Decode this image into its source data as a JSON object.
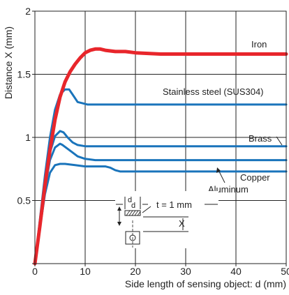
{
  "chart_data": {
    "type": "line",
    "title": "",
    "xlabel": "Side length of sensing object: d (mm)",
    "ylabel": "Distance X (mm)",
    "xlim": [
      0,
      50
    ],
    "ylim": [
      0,
      2
    ],
    "x_ticks": [
      0,
      10,
      20,
      30,
      40,
      50
    ],
    "x_tick_labels": [
      "0",
      "10",
      "20",
      "30",
      "40",
      "50"
    ],
    "y_ticks": [
      0,
      0.5,
      1,
      1.5,
      2
    ],
    "y_tick_labels": [
      "",
      "0.5",
      "1",
      "1.5",
      "2"
    ],
    "grid": true,
    "series": [
      {
        "name": "Iron",
        "color": "#e8262b",
        "x": [
          0,
          1,
          2,
          3,
          4,
          5,
          6,
          7,
          8,
          9,
          10,
          11,
          12,
          13,
          14,
          16,
          18,
          20,
          25,
          30,
          40,
          50
        ],
        "y": [
          0,
          0.3,
          0.62,
          0.9,
          1.14,
          1.32,
          1.44,
          1.52,
          1.58,
          1.63,
          1.67,
          1.69,
          1.7,
          1.7,
          1.69,
          1.68,
          1.68,
          1.67,
          1.66,
          1.66,
          1.66,
          1.66
        ]
      },
      {
        "name": "Stainless steel (SUS304)",
        "color": "#1a74bb",
        "x": [
          0,
          1,
          2,
          3,
          4,
          5,
          6,
          6.8,
          7.5,
          8.5,
          9.5,
          10.5,
          12,
          20,
          30,
          40,
          50
        ],
        "y": [
          0,
          0.35,
          0.7,
          1.0,
          1.22,
          1.34,
          1.38,
          1.38,
          1.34,
          1.28,
          1.27,
          1.26,
          1.26,
          1.26,
          1.26,
          1.26,
          1.26
        ]
      },
      {
        "name": "Brass",
        "color": "#1a74bb",
        "x": [
          0,
          1,
          2,
          3,
          4,
          5,
          5.7,
          6.5,
          7.5,
          8.5,
          10,
          12,
          20,
          30,
          40,
          50
        ],
        "y": [
          0,
          0.32,
          0.65,
          0.88,
          1.01,
          1.05,
          1.04,
          1.0,
          0.96,
          0.94,
          0.93,
          0.93,
          0.93,
          0.93,
          0.93,
          0.93
        ]
      },
      {
        "name": "Copper",
        "color": "#1a74bb",
        "x": [
          0,
          1,
          2,
          3,
          4,
          5,
          5.5,
          6.5,
          7.5,
          8.5,
          10,
          12,
          20,
          30,
          40,
          50
        ],
        "y": [
          0,
          0.3,
          0.6,
          0.82,
          0.92,
          0.95,
          0.94,
          0.91,
          0.88,
          0.85,
          0.83,
          0.82,
          0.82,
          0.82,
          0.82,
          0.82
        ]
      },
      {
        "name": "Aluminum",
        "color": "#1a74bb",
        "x": [
          0,
          1,
          2,
          3,
          4,
          5,
          6,
          8,
          10,
          12,
          14,
          15,
          16,
          17,
          20,
          30,
          40,
          50
        ],
        "y": [
          0,
          0.28,
          0.55,
          0.72,
          0.78,
          0.79,
          0.79,
          0.78,
          0.77,
          0.77,
          0.77,
          0.76,
          0.74,
          0.73,
          0.73,
          0.73,
          0.73,
          0.73
        ]
      }
    ],
    "series_labels": [
      "Iron",
      "Stainless steel (SUS304)",
      "Brass",
      "Copper",
      "Aluminum"
    ],
    "inset": {
      "dim_top": "d",
      "dim_mid": "d",
      "thickness": "t = 1 mm",
      "distance": "X"
    }
  }
}
